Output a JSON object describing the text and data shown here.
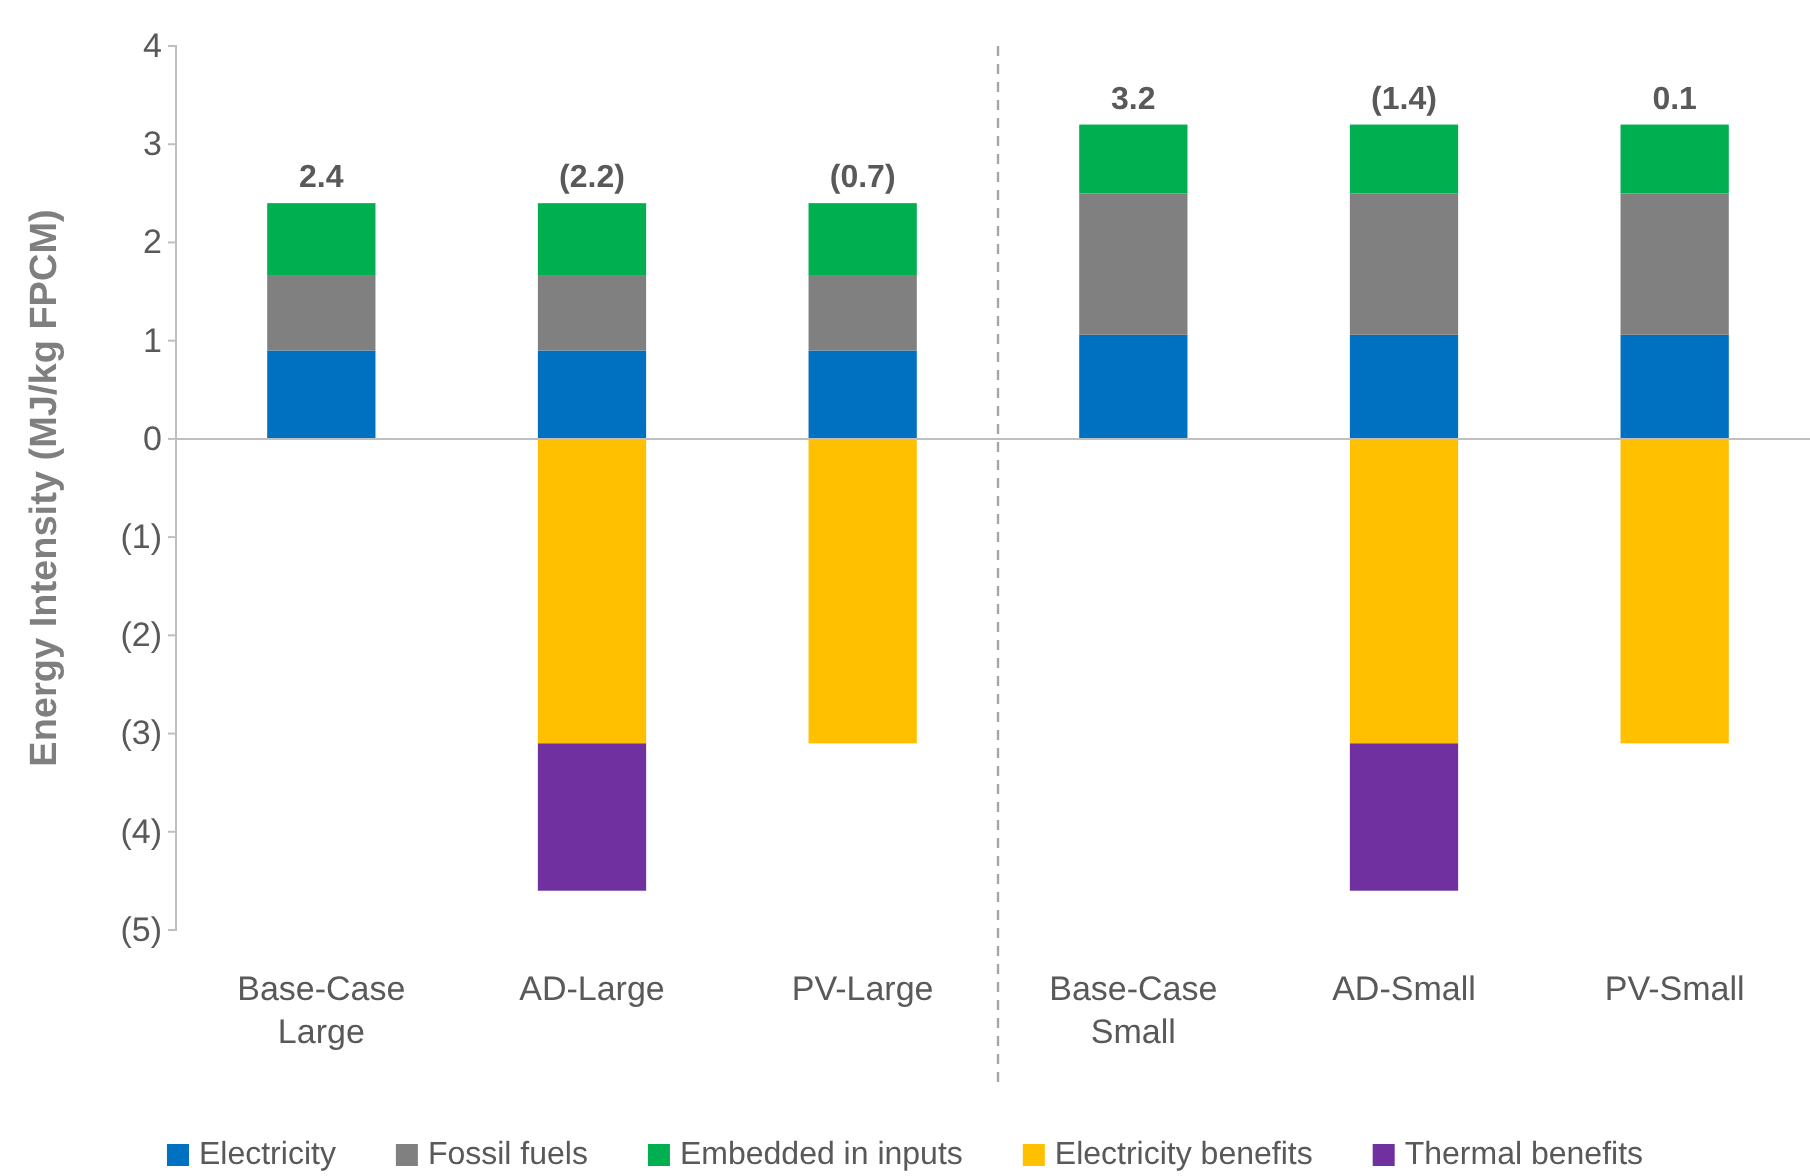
{
  "chart_data": {
    "type": "bar",
    "stacked": true,
    "ylabel": "Energy Intensity (MJ/kg FPCM)",
    "categories": [
      "Base-Case Large",
      "AD-Large",
      "PV-Large",
      "Base-Case Small",
      "AD-Small",
      "PV-Small"
    ],
    "series": [
      {
        "name": "Electricity",
        "color": "#0070c0",
        "values": [
          0.9,
          0.9,
          0.9,
          1.06,
          1.06,
          1.06
        ]
      },
      {
        "name": "Fossil fuels",
        "color": "#808080",
        "values": [
          0.76,
          0.76,
          0.76,
          1.44,
          1.44,
          1.44
        ]
      },
      {
        "name": "Embedded in inputs",
        "color": "#00b050",
        "values": [
          0.74,
          0.74,
          0.74,
          0.7,
          0.7,
          0.7
        ]
      },
      {
        "name": "Electricity benefits",
        "color": "#ffc000",
        "values": [
          0,
          -3.1,
          -3.1,
          0,
          -3.1,
          -3.1
        ]
      },
      {
        "name": "Thermal benefits",
        "color": "#7030a0",
        "values": [
          0,
          -1.5,
          0,
          0,
          -1.5,
          0
        ]
      }
    ],
    "totals": [
      "2.4",
      "(2.2)",
      "(0.7)",
      "3.2",
      "(1.4)",
      "0.1"
    ],
    "ylim": [
      -5,
      4
    ],
    "yticks": [
      {
        "value": -5,
        "label": "(5)"
      },
      {
        "value": -4,
        "label": "(4)"
      },
      {
        "value": -3,
        "label": "(3)"
      },
      {
        "value": -2,
        "label": "(2)"
      },
      {
        "value": -1,
        "label": "(1)"
      },
      0,
      1,
      2,
      3,
      4
    ],
    "legend": "bottom"
  }
}
